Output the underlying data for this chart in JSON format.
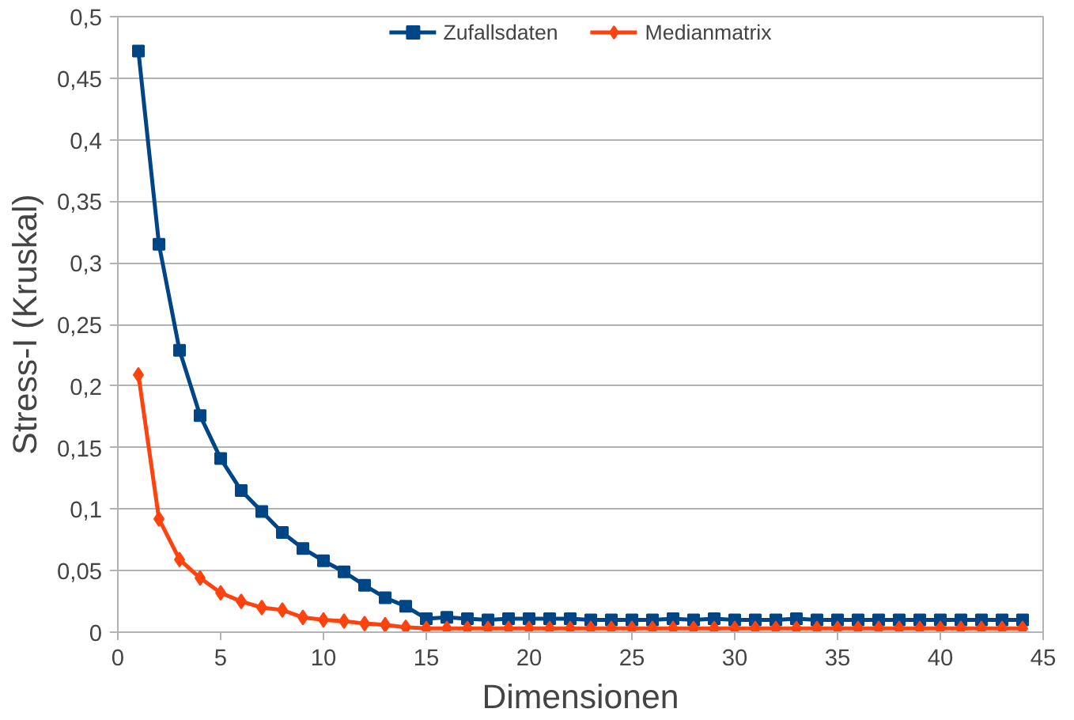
{
  "chart_data": {
    "type": "line",
    "xlabel": "Dimensionen",
    "ylabel": "Stress-I (Kruskal)",
    "x": [
      1,
      2,
      3,
      4,
      5,
      6,
      7,
      8,
      9,
      10,
      11,
      12,
      13,
      14,
      15,
      16,
      17,
      18,
      19,
      20,
      21,
      22,
      23,
      24,
      25,
      26,
      27,
      28,
      29,
      30,
      31,
      32,
      33,
      34,
      35,
      36,
      37,
      38,
      39,
      40,
      41,
      42,
      43,
      44
    ],
    "series": [
      {
        "name": "Zufallsdaten",
        "color": "#004586",
        "marker": "square",
        "values": [
          0.472,
          0.315,
          0.229,
          0.176,
          0.141,
          0.115,
          0.098,
          0.081,
          0.068,
          0.058,
          0.049,
          0.038,
          0.028,
          0.021,
          0.011,
          0.012,
          0.011,
          0.01,
          0.011,
          0.011,
          0.011,
          0.011,
          0.01,
          0.01,
          0.01,
          0.01,
          0.011,
          0.01,
          0.011,
          0.01,
          0.01,
          0.01,
          0.011,
          0.01,
          0.01,
          0.01,
          0.01,
          0.01,
          0.01,
          0.01,
          0.01,
          0.01,
          0.01,
          0.01
        ]
      },
      {
        "name": "Medianmatrix",
        "color": "#ff420e",
        "marker": "diamond",
        "values": [
          0.209,
          0.092,
          0.059,
          0.044,
          0.032,
          0.025,
          0.02,
          0.018,
          0.012,
          0.01,
          0.009,
          0.007,
          0.006,
          0.004,
          0.003,
          0.003,
          0.003,
          0.003,
          0.003,
          0.003,
          0.003,
          0.003,
          0.003,
          0.003,
          0.003,
          0.003,
          0.003,
          0.003,
          0.003,
          0.003,
          0.003,
          0.003,
          0.003,
          0.003,
          0.003,
          0.003,
          0.003,
          0.003,
          0.003,
          0.003,
          0.003,
          0.003,
          0.003,
          0.003
        ]
      }
    ],
    "xlim": [
      0,
      45
    ],
    "xticks": [
      0,
      5,
      10,
      15,
      20,
      25,
      30,
      35,
      40,
      45
    ],
    "ylim": [
      0,
      0.5
    ],
    "yticks": [
      {
        "value": 0,
        "label": "0"
      },
      {
        "value": 0.05,
        "label": "0,05"
      },
      {
        "value": 0.1,
        "label": "0,1"
      },
      {
        "value": 0.15,
        "label": "0,15"
      },
      {
        "value": 0.2,
        "label": "0,2"
      },
      {
        "value": 0.25,
        "label": "0,25"
      },
      {
        "value": 0.3,
        "label": "0,3"
      },
      {
        "value": 0.35,
        "label": "0,35"
      },
      {
        "value": 0.4,
        "label": "0,4"
      },
      {
        "value": 0.45,
        "label": "0,45"
      },
      {
        "value": 0.5,
        "label": "0,5"
      }
    ],
    "grid": "y",
    "legend": "top",
    "line_style": "solid"
  }
}
